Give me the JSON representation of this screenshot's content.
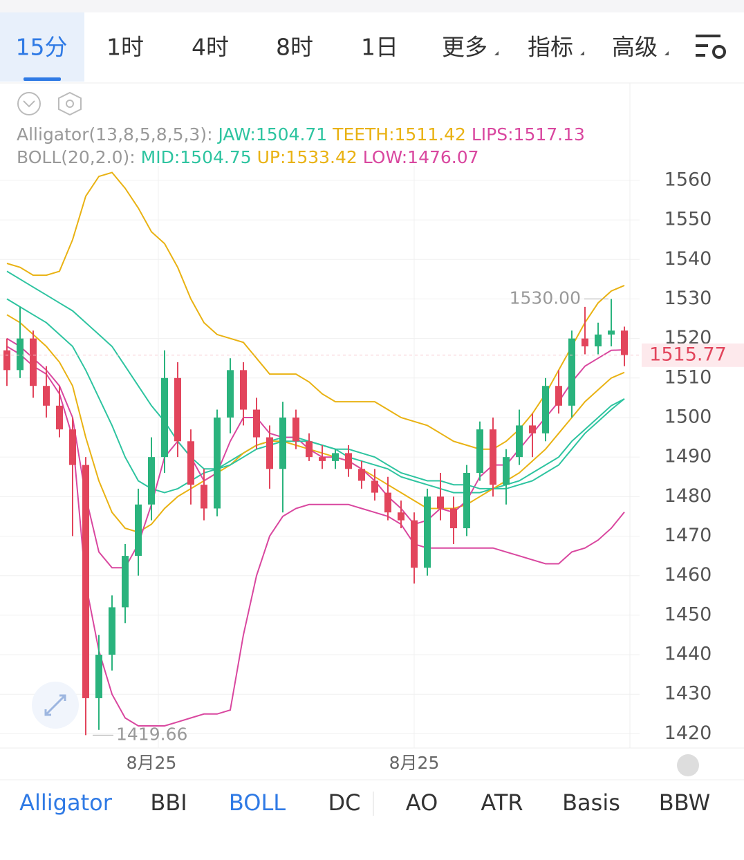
{
  "tabs": [
    "15分",
    "1时",
    "4时",
    "8时",
    "1日",
    "更多",
    "指标",
    "高级"
  ],
  "bottom_tabs": [
    "Alligator",
    "BBI",
    "BOLL",
    "DC",
    "AO",
    "ATR",
    "Basis",
    "BBW"
  ],
  "chart_data": {
    "type": "candlestick",
    "categories": [
      null,
      null,
      null,
      null,
      null,
      null,
      null,
      null,
      null,
      null,
      null,
      "8月25",
      null,
      null,
      null,
      null,
      null,
      null,
      null,
      null,
      null,
      null,
      null,
      null,
      null,
      null,
      null,
      null,
      null,
      null,
      null,
      "8月25",
      null,
      null,
      null,
      null,
      null,
      null,
      null,
      null,
      null,
      null,
      null,
      null,
      null,
      null,
      null,
      null
    ],
    "open": [
      1517,
      1512,
      1520,
      1508,
      1503,
      1497,
      1488,
      1429,
      1440,
      1452,
      1465,
      1478,
      1490,
      1510,
      1494,
      1483,
      1477,
      1500,
      1512,
      1502,
      1495,
      1487,
      1500,
      1494,
      1490,
      1489,
      1491,
      1487,
      1484,
      1481,
      1476,
      1474,
      1462,
      1480,
      1477,
      1472,
      1486,
      1497,
      1483,
      1490,
      1498,
      1496,
      1508,
      1503,
      1520,
      1518,
      1521,
      1522
    ],
    "high": [
      1520,
      1528,
      1522,
      1513,
      1508,
      1500,
      1490,
      1445,
      1455,
      1468,
      1482,
      1495,
      1517,
      1514,
      1497,
      1487,
      1502,
      1515,
      1514,
      1505,
      1498,
      1504,
      1502,
      1496,
      1493,
      1492,
      1493,
      1489,
      1487,
      1485,
      1479,
      1476,
      1482,
      1486,
      1480,
      1488,
      1499,
      1500,
      1492,
      1502,
      1501,
      1510,
      1512,
      1522,
      1528,
      1524,
      1530,
      1523
    ],
    "low": [
      1508,
      1510,
      1505,
      1500,
      1495,
      1470,
      1419.66,
      1421,
      1436,
      1448,
      1460,
      1474,
      1486,
      1490,
      1478,
      1474,
      1475,
      1496,
      1498,
      1492,
      1482,
      1476,
      1492,
      1489,
      1487,
      1487,
      1485,
      1482,
      1479,
      1474,
      1472,
      1458,
      1460,
      1474,
      1468,
      1470,
      1484,
      1480,
      1478,
      1488,
      1490,
      1494,
      1501,
      1500,
      1516,
      1516,
      1518,
      1513
    ],
    "close": [
      1512,
      1520,
      1508,
      1503,
      1497,
      1488,
      1429,
      1440,
      1452,
      1465,
      1478,
      1490,
      1510,
      1494,
      1483,
      1477,
      1500,
      1512,
      1502,
      1495,
      1487,
      1500,
      1494,
      1490,
      1489,
      1491,
      1487,
      1484,
      1481,
      1476,
      1474,
      1462,
      1480,
      1477,
      1472,
      1486,
      1497,
      1483,
      1490,
      1498,
      1496,
      1508,
      1503,
      1520,
      1518,
      1521,
      1522,
      1515.77
    ],
    "up_color": "#2ab37d",
    "down_color": "#e2455c",
    "annotations": [
      {
        "value": 1530,
        "label": "1530.00"
      }
    ],
    "ylim": [
      1415,
      1571
    ],
    "yticks": [
      1420,
      1430,
      1440,
      1450,
      1460,
      1470,
      1480,
      1490,
      1500,
      1510,
      1520,
      1530,
      1540,
      1550,
      1560
    ],
    "grid": true,
    "indicators": [
      {
        "title": "Alligator(13,8,5,8,5,3):",
        "series": [
          {
            "name": "JAW:",
            "color": "#2ec4a0",
            "values": [
              1530,
              1528,
              1526,
              1524,
              1521,
              1518,
              1512,
              1505,
              1498,
              1490,
              1484,
              1482,
              1481,
              1482,
              1484,
              1486,
              1487,
              1489,
              1491,
              1493,
              1494,
              1495,
              1495,
              1494,
              1493,
              1492,
              1490,
              1489,
              1488,
              1487,
              1485,
              1484,
              1483,
              1482,
              1481,
              1481,
              1481,
              1482,
              1483,
              1484,
              1486,
              1488,
              1490,
              1494,
              1497,
              1500,
              1503,
              1504.71
            ]
          },
          {
            "name": "TEETH:",
            "color": "#e9b213",
            "values": [
              1526,
              1524,
              1521,
              1518,
              1514,
              1508,
              1495,
              1484,
              1476,
              1472,
              1471,
              1473,
              1477,
              1480,
              1482,
              1484,
              1486,
              1488,
              1491,
              1493,
              1494,
              1494,
              1493,
              1492,
              1491,
              1490,
              1489,
              1487,
              1485,
              1483,
              1481,
              1479,
              1477,
              1477,
              1477,
              1478,
              1480,
              1482,
              1484,
              1486,
              1489,
              1492,
              1496,
              1500,
              1504,
              1507,
              1510,
              1511.42
            ]
          },
          {
            "name": "LIPS:",
            "color": "#d9479f",
            "values": [
              1520,
              1518,
              1515,
              1512,
              1508,
              1500,
              1480,
              1466,
              1462,
              1462,
              1468,
              1478,
              1490,
              1494,
              1490,
              1484,
              1486,
              1494,
              1500,
              1500,
              1496,
              1495,
              1495,
              1492,
              1490,
              1490,
              1489,
              1487,
              1484,
              1480,
              1477,
              1473,
              1474,
              1477,
              1476,
              1479,
              1485,
              1488,
              1488,
              1492,
              1496,
              1500,
              1504,
              1509,
              1513,
              1515,
              1517,
              1517.13
            ]
          }
        ]
      },
      {
        "title": "BOLL(20,2.0):",
        "series": [
          {
            "name": "MID:",
            "color": "#2ec4a0",
            "values": [
              1537,
              1535,
              1533,
              1531,
              1529,
              1527,
              1524,
              1521,
              1518,
              1513,
              1508,
              1503,
              1499,
              1494,
              1490,
              1487,
              1487,
              1488,
              1490,
              1492,
              1493,
              1494,
              1494,
              1494,
              1493,
              1492,
              1492,
              1491,
              1490,
              1488,
              1486,
              1485,
              1484,
              1484,
              1483,
              1483,
              1482,
              1482,
              1482,
              1483,
              1484,
              1486,
              1488,
              1492,
              1496,
              1499,
              1502,
              1504.75
            ]
          },
          {
            "name": "UP:",
            "color": "#e9b213",
            "values": [
              1539,
              1538,
              1536,
              1536,
              1537,
              1545,
              1556,
              1561,
              1562,
              1558,
              1553,
              1547,
              1544,
              1538,
              1530,
              1524,
              1521,
              1520,
              1519,
              1515,
              1511,
              1511,
              1511,
              1509,
              1506,
              1504,
              1504,
              1504,
              1504,
              1502,
              1500,
              1499,
              1498,
              1496,
              1494,
              1493,
              1492,
              1492,
              1494,
              1497,
              1501,
              1506,
              1512,
              1518,
              1524,
              1529,
              1532,
              1533.42
            ]
          },
          {
            "name": "LOW:",
            "color": "#d9479f",
            "values": [
              1518,
              1516,
              1513,
              1511,
              1506,
              1495,
              1458,
              1441,
              1430,
              1424,
              1422,
              1422,
              1422,
              1423,
              1424,
              1425,
              1425,
              1426,
              1445,
              1460,
              1470,
              1475,
              1477,
              1478,
              1478,
              1478,
              1478,
              1477,
              1476,
              1475,
              1473,
              1468,
              1467,
              1467,
              1467,
              1467,
              1467,
              1467,
              1466,
              1465,
              1464,
              1463,
              1463,
              1466,
              1467,
              1469,
              1472,
              1476.07
            ]
          }
        ]
      }
    ]
  }
}
